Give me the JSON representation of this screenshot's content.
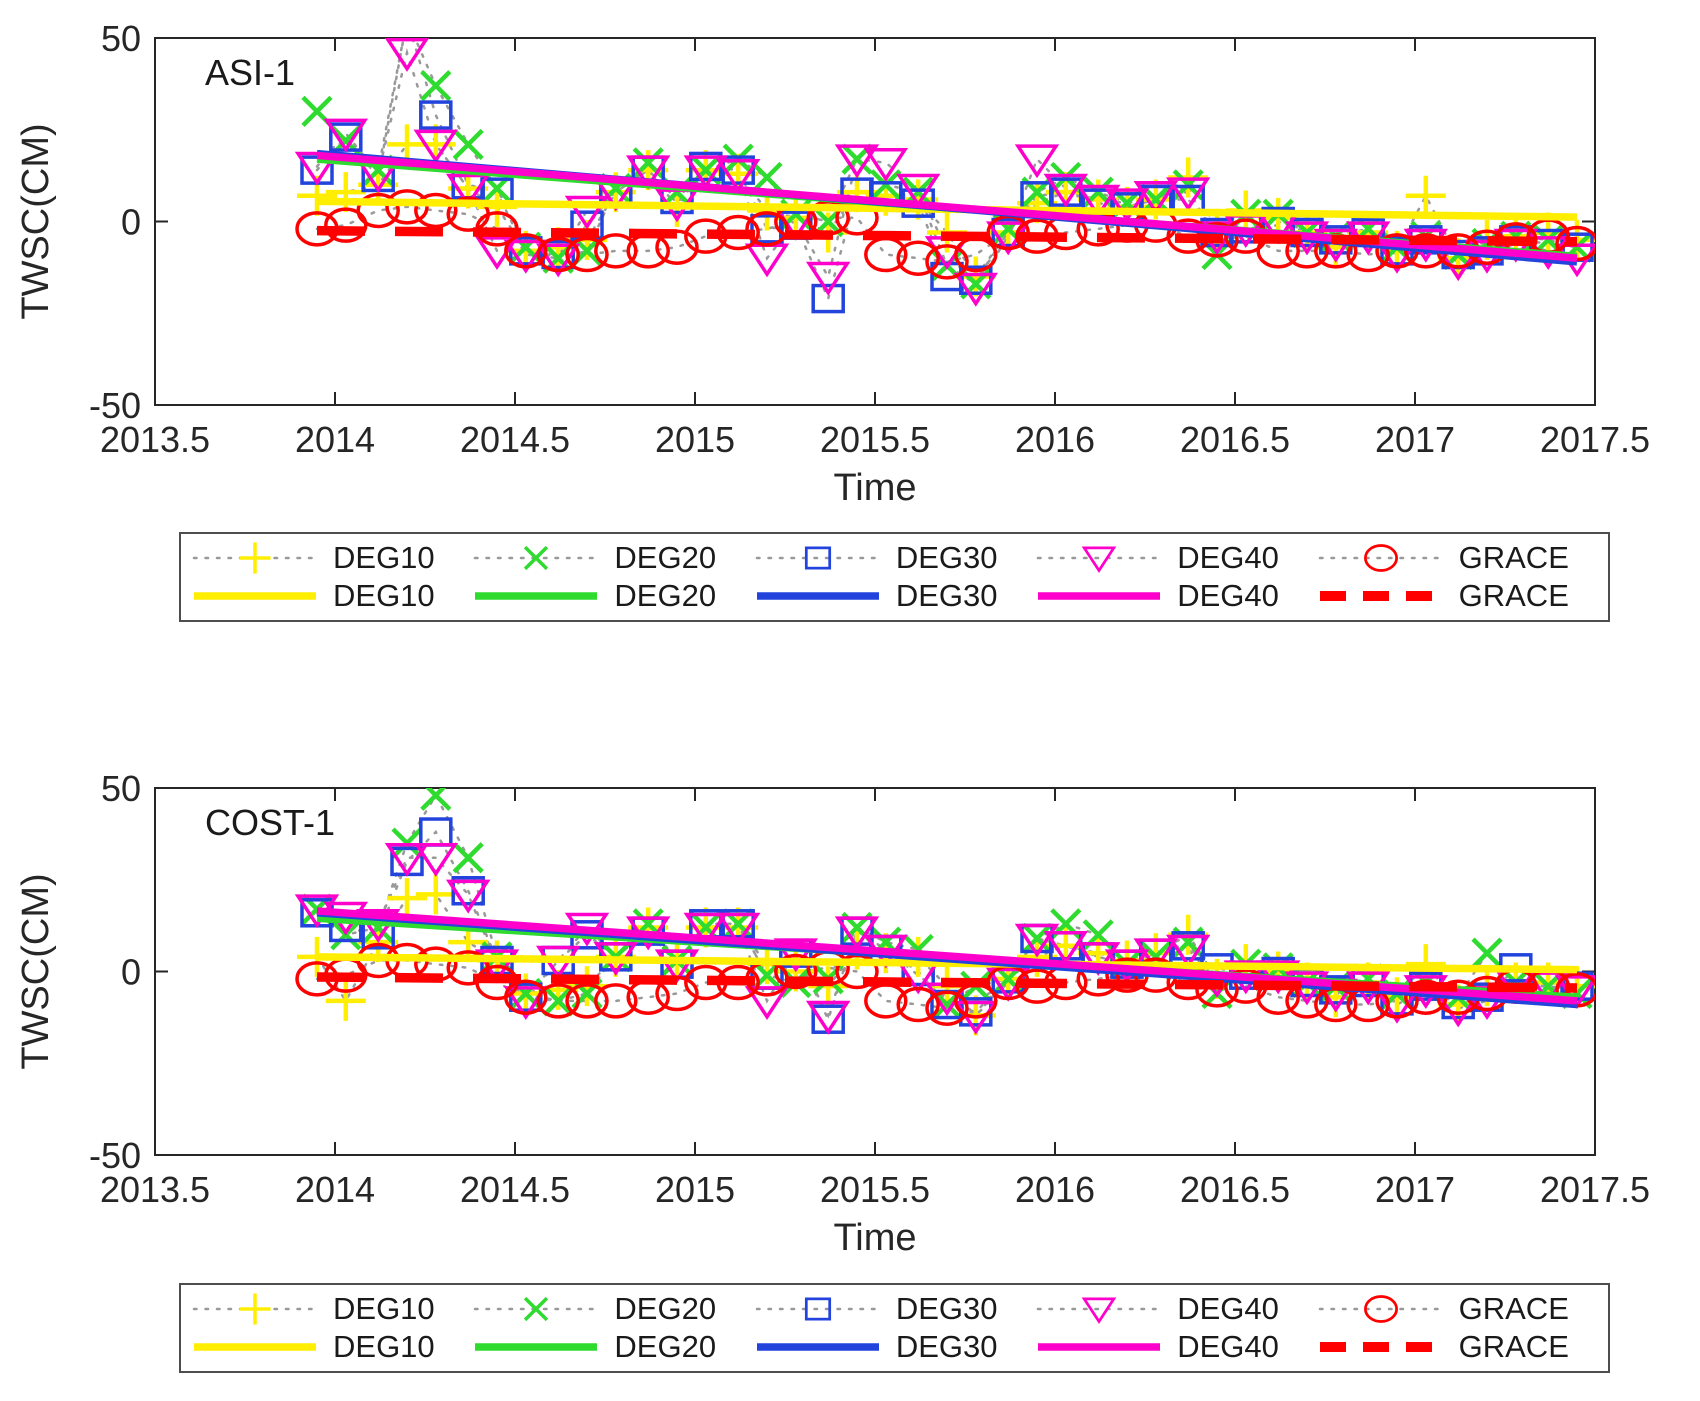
{
  "figure": {
    "series_defs": [
      {
        "id": "DEG10",
        "label": "DEG10",
        "color": "#ffee00",
        "marker": "plus",
        "trend_dashed": false
      },
      {
        "id": "DEG20",
        "label": "DEG20",
        "color": "#2fdb2f",
        "marker": "x",
        "trend_dashed": false
      },
      {
        "id": "DEG30",
        "label": "DEG30",
        "color": "#2244dd",
        "marker": "square",
        "trend_dashed": false
      },
      {
        "id": "DEG40",
        "label": "DEG40",
        "color": "#ff00cc",
        "marker": "triangle-down",
        "trend_dashed": false
      },
      {
        "id": "GRACE",
        "label": "GRACE",
        "color": "#ff0000",
        "marker": "circle",
        "trend_dashed": true
      }
    ],
    "connector_color": "#999999",
    "axis_color": "#262626",
    "text_color": "#1a1a1a"
  },
  "chart_data": [
    {
      "type": "scatter",
      "title": "ASI-1",
      "xlabel": "Time",
      "ylabel": "TWSC(CM)",
      "xlim": [
        2013.5,
        2017.5
      ],
      "ylim": [
        -50,
        50
      ],
      "xtick_labels": [
        "2013.5",
        "2014",
        "2014.5",
        "2015",
        "2015.5",
        "2016",
        "2016.5",
        "2017",
        "2017.5"
      ],
      "xticks": [
        2013.5,
        2014,
        2014.5,
        2015,
        2015.5,
        2016,
        2016.5,
        2017,
        2017.5
      ],
      "ytick_labels": [
        "50",
        "0",
        "-50"
      ],
      "yticks": [
        50,
        0,
        -50
      ],
      "legend_position": "below",
      "grid": false,
      "x": [
        2013.95,
        2014.03,
        2014.12,
        2014.2,
        2014.28,
        2014.37,
        2014.45,
        2014.53,
        2014.62,
        2014.7,
        2014.78,
        2014.87,
        2014.95,
        2015.03,
        2015.12,
        2015.2,
        2015.28,
        2015.37,
        2015.45,
        2015.53,
        2015.62,
        2015.7,
        2015.78,
        2015.87,
        2015.95,
        2016.03,
        2016.12,
        2016.2,
        2016.28,
        2016.37,
        2016.45,
        2016.53,
        2016.62,
        2016.7,
        2016.78,
        2016.87,
        2016.95,
        2017.03,
        2017.12,
        2017.2,
        2017.28,
        2017.37,
        2017.45
      ],
      "series": [
        {
          "name": "DEG10",
          "values": [
            7,
            8,
            10,
            21,
            21,
            9,
            4,
            -8,
            -7,
            -5,
            8,
            14,
            4,
            14,
            13,
            3,
            1,
            -3,
            8,
            7,
            6,
            -3,
            -15,
            -3,
            5,
            8,
            6,
            4,
            6,
            12,
            -2,
            3,
            1,
            -3,
            -7,
            -3,
            -8,
            7,
            -10,
            -5,
            -4,
            -3,
            -5
          ]
        },
        {
          "name": "DEG20",
          "values": [
            30,
            22,
            14,
            55,
            37,
            21,
            9,
            -7,
            -10,
            -8,
            9,
            16,
            8,
            14,
            17,
            12,
            2,
            0,
            17,
            10,
            8,
            -12,
            -17,
            -2,
            8,
            12,
            8,
            5,
            6,
            10,
            -9,
            2,
            2,
            -3,
            -4,
            -2,
            -7,
            -4,
            -9,
            -6,
            -4,
            -5,
            -7
          ]
        },
        {
          "name": "DEG30",
          "values": [
            14,
            23,
            12,
            55,
            29,
            10,
            8,
            -8,
            -9,
            -1,
            8,
            14,
            6,
            15,
            14,
            -2,
            -1,
            -21,
            8,
            7,
            5,
            -15,
            -16,
            -3,
            7,
            8,
            5,
            4,
            6,
            6,
            -3,
            -2,
            0,
            -3,
            -5,
            -3,
            -8,
            -5,
            -9,
            -8,
            -5,
            -6,
            -7
          ]
        },
        {
          "name": "DEG40",
          "values": [
            15,
            24,
            13,
            46,
            21,
            9,
            -8,
            -9,
            -10,
            3,
            8,
            14,
            5,
            14,
            13,
            -10,
            0,
            -15,
            17,
            16,
            9,
            -8,
            -18,
            -4,
            17,
            9,
            6,
            5,
            7,
            8,
            -4,
            -2,
            -1,
            -4,
            -6,
            -4,
            -9,
            -6,
            -11,
            -9,
            -6,
            -8,
            -10
          ]
        },
        {
          "name": "GRACE",
          "values": [
            -2,
            -1,
            3,
            4,
            3,
            2,
            -2,
            -8,
            -9,
            -9,
            -8,
            -8,
            -7,
            -4,
            -3,
            -2,
            0,
            1,
            1,
            -9,
            -10,
            -11,
            -9,
            -3,
            -4,
            -3,
            -2,
            -1,
            -1,
            -4,
            -5,
            -4,
            -8,
            -8,
            -8,
            -9,
            -8,
            -8,
            -8,
            -7,
            -5,
            -4,
            -6
          ]
        }
      ],
      "trends": [
        {
          "name": "DEG10",
          "x": [
            2013.95,
            2017.45
          ],
          "y": [
            5.5,
            1.2
          ]
        },
        {
          "name": "DEG20",
          "x": [
            2013.95,
            2017.45
          ],
          "y": [
            17,
            -9.5
          ]
        },
        {
          "name": "DEG30",
          "x": [
            2013.95,
            2017.45
          ],
          "y": [
            18.5,
            -11
          ]
        },
        {
          "name": "DEG40",
          "x": [
            2013.95,
            2017.45
          ],
          "y": [
            18,
            -10
          ]
        },
        {
          "name": "GRACE",
          "x": [
            2013.95,
            2017.45
          ],
          "y": [
            -2.5,
            -5.5
          ]
        }
      ]
    },
    {
      "type": "scatter",
      "title": "COST-1",
      "xlabel": "Time",
      "ylabel": "TWSC(CM)",
      "xlim": [
        2013.5,
        2017.5
      ],
      "ylim": [
        -50,
        50
      ],
      "xtick_labels": [
        "2013.5",
        "2014",
        "2014.5",
        "2015",
        "2015.5",
        "2016",
        "2016.5",
        "2017",
        "2017.5"
      ],
      "xticks": [
        2013.5,
        2014,
        2014.5,
        2015,
        2015.5,
        2016,
        2016.5,
        2017,
        2017.5
      ],
      "ytick_labels": [
        "50",
        "0",
        "-50"
      ],
      "yticks": [
        50,
        0,
        -50
      ],
      "legend_position": "below",
      "grid": false,
      "x": [
        2013.95,
        2014.03,
        2014.12,
        2014.2,
        2014.28,
        2014.37,
        2014.45,
        2014.53,
        2014.62,
        2014.7,
        2014.78,
        2014.87,
        2014.95,
        2015.03,
        2015.12,
        2015.2,
        2015.28,
        2015.37,
        2015.45,
        2015.53,
        2015.62,
        2015.7,
        2015.78,
        2015.87,
        2015.95,
        2016.03,
        2016.12,
        2016.2,
        2016.28,
        2016.37,
        2016.45,
        2016.53,
        2016.62,
        2016.7,
        2016.78,
        2016.87,
        2016.95,
        2017.03,
        2017.12,
        2017.2,
        2017.28,
        2017.37,
        2017.45
      ],
      "series": [
        {
          "name": "DEG10",
          "values": [
            4,
            -8,
            8,
            20,
            21,
            8,
            3,
            -6,
            -5,
            -4,
            4,
            12,
            3,
            12,
            12,
            2,
            0,
            -4,
            6,
            5,
            4,
            -4,
            -12,
            -2,
            4,
            7,
            5,
            3,
            5,
            10,
            -2,
            2,
            0,
            -3,
            -7,
            -3,
            -7,
            2,
            -9,
            -4,
            -3,
            -3,
            -4
          ]
        },
        {
          "name": "DEG20",
          "values": [
            17,
            10,
            12,
            35,
            48,
            31,
            4,
            -6,
            -8,
            -6,
            4,
            13,
            3,
            12,
            13,
            -1,
            -3,
            -2,
            12,
            8,
            6,
            -9,
            -4,
            -2,
            9,
            13,
            10,
            2,
            4,
            8,
            -6,
            2,
            1,
            -3,
            -4,
            -2,
            -6,
            -3,
            -7,
            5,
            -3,
            -4,
            -6
          ]
        },
        {
          "name": "DEG30",
          "values": [
            16,
            12,
            10,
            30,
            38,
            22,
            3,
            -7,
            3,
            10,
            4,
            11,
            2,
            13,
            13,
            -1,
            5,
            -13,
            11,
            6,
            0,
            -9,
            -11,
            -2,
            9,
            7,
            4,
            2,
            5,
            7,
            1,
            -1,
            0,
            -3,
            -5,
            -3,
            -8,
            -4,
            -9,
            -7,
            1,
            -3,
            -4
          ]
        },
        {
          "name": "DEG40",
          "values": [
            17,
            15,
            13,
            31,
            31,
            21,
            2,
            -8,
            3,
            12,
            4,
            11,
            2,
            12,
            12,
            -8,
            5,
            -12,
            11,
            6,
            -1,
            -7,
            -12,
            -3,
            9,
            7,
            4,
            2,
            5,
            6,
            -2,
            -1,
            -1,
            -4,
            -6,
            -4,
            -9,
            -5,
            -10,
            -8,
            -3,
            -4,
            -5
          ]
        },
        {
          "name": "GRACE",
          "values": [
            -2,
            -1,
            3,
            3,
            2,
            1,
            -3,
            -7,
            -8,
            -8,
            -8,
            -7,
            -6,
            -3,
            -3,
            -2,
            0,
            1,
            0,
            -8,
            -9,
            -10,
            -8,
            -3,
            -4,
            -3,
            -2,
            -1,
            -1,
            -3,
            -5,
            -4,
            -7,
            -8,
            -9,
            -9,
            -8,
            -7,
            -7,
            -6,
            -4,
            -4,
            -5
          ]
        }
      ],
      "trends": [
        {
          "name": "DEG10",
          "x": [
            2013.95,
            2017.45
          ],
          "y": [
            4,
            0.5
          ]
        },
        {
          "name": "DEG20",
          "x": [
            2013.95,
            2017.45
          ],
          "y": [
            14.5,
            -7
          ]
        },
        {
          "name": "DEG30",
          "x": [
            2013.95,
            2017.45
          ],
          "y": [
            16,
            -9
          ]
        },
        {
          "name": "DEG40",
          "x": [
            2013.95,
            2017.45
          ],
          "y": [
            16.5,
            -8
          ]
        },
        {
          "name": "GRACE",
          "x": [
            2013.95,
            2017.45
          ],
          "y": [
            -1.5,
            -4.5
          ]
        }
      ]
    }
  ]
}
